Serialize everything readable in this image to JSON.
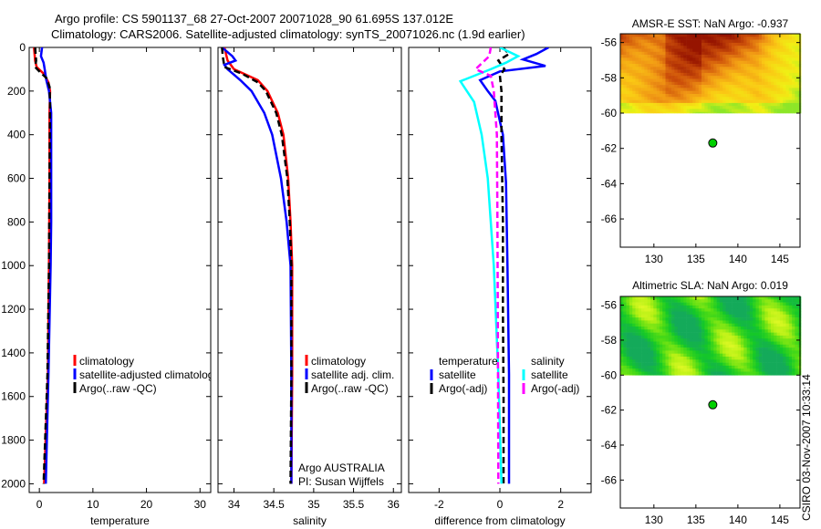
{
  "title": {
    "line1": "Argo profile: CS 5901137_68 27-Oct-2007 20071028_90 61.695S 137.012E",
    "line2": "Climatology: CARS2006. Satellite-adjusted climatology: synTS_20071026.nc (1.9d earlier)"
  },
  "footer_stamp": "CSIRO 03-Nov-2007 10:33:14",
  "colors": {
    "climatology": "#ff0000",
    "satellite": "#0000ff",
    "argo": "#000000",
    "sal_satellite": "#00ffff",
    "sal_argo": "#ff00ff"
  },
  "chart_data": [
    {
      "type": "line",
      "id": "temperature",
      "xlabel": "temperature",
      "ylabel": "",
      "xlim": [
        -1.9,
        32
      ],
      "ylim": [
        2040,
        0
      ],
      "xticks": [
        0,
        10,
        20,
        30
      ],
      "yticks": [
        0,
        200,
        400,
        600,
        800,
        1000,
        1200,
        1400,
        1600,
        1800,
        2000
      ],
      "legend": [
        "climatology",
        "satellite-adjusted climatology",
        "Argo(..raw -QC)"
      ],
      "legend_position": "lower-middle",
      "series": [
        {
          "name": "climatology",
          "color": "#ff0000",
          "depth": [
            0,
            60,
            90,
            120,
            160,
            200,
            300,
            600,
            1000,
            1500,
            2000
          ],
          "values": [
            -1.0,
            -0.8,
            -0.5,
            0.8,
            1.7,
            2.0,
            1.9,
            1.9,
            1.8,
            1.6,
            0.9
          ]
        },
        {
          "name": "satellite-adjusted climatology",
          "color": "#0000ff",
          "depth": [
            0,
            40,
            70,
            100,
            150,
            200,
            300,
            500,
            800,
            1000,
            1500,
            2000
          ],
          "values": [
            0.5,
            0.3,
            0.8,
            1.0,
            1.3,
            1.8,
            2.2,
            2.2,
            2.2,
            2.1,
            1.7,
            1.2
          ]
        },
        {
          "name": "Argo(..raw -QC)",
          "color": "#000000",
          "dashed": true,
          "depth": [
            0,
            60,
            90,
            110,
            140,
            180,
            250,
            600,
            1000,
            1500,
            2000
          ],
          "values": [
            -0.8,
            -0.6,
            -0.8,
            0.0,
            1.3,
            1.9,
            2.0,
            1.9,
            1.8,
            1.5,
            0.8
          ]
        }
      ]
    },
    {
      "type": "line",
      "id": "salinity",
      "xlabel": "salinity",
      "xlim": [
        33.8,
        36.1
      ],
      "ylim": [
        2040,
        0
      ],
      "xticks": [
        34,
        34.5,
        35,
        35.5,
        36
      ],
      "legend": [
        "climatology",
        "satellite adj. clim.",
        "Argo(..raw -QC)"
      ],
      "legend_position": "lower-middle",
      "annotation": [
        "Argo AUSTRALIA",
        "PI: Susan Wijffels"
      ],
      "series": [
        {
          "name": "climatology",
          "color": "#ff0000",
          "depth": [
            0,
            60,
            100,
            150,
            200,
            300,
            400,
            600,
            800,
            1000,
            1500,
            2000
          ],
          "values": [
            33.88,
            33.92,
            34.0,
            34.3,
            34.42,
            34.55,
            34.62,
            34.68,
            34.71,
            34.73,
            34.73,
            34.72
          ]
        },
        {
          "name": "satellite adj. clim.",
          "color": "#0000ff",
          "depth": [
            0,
            40,
            60,
            80,
            100,
            150,
            200,
            300,
            400,
            600,
            800,
            1000,
            1500,
            2000
          ],
          "values": [
            33.85,
            33.98,
            34.02,
            33.88,
            33.92,
            34.08,
            34.22,
            34.38,
            34.48,
            34.59,
            34.66,
            34.71,
            34.72,
            34.72
          ]
        },
        {
          "name": "Argo(..raw -QC)",
          "color": "#000000",
          "dashed": true,
          "depth": [
            0,
            40,
            90,
            120,
            160,
            200,
            300,
            400,
            600,
            800,
            1000,
            1500,
            2000
          ],
          "values": [
            33.85,
            33.86,
            33.88,
            34.1,
            34.3,
            34.4,
            34.53,
            34.6,
            34.67,
            34.7,
            34.72,
            34.72,
            34.71
          ]
        }
      ]
    },
    {
      "type": "line",
      "id": "difference",
      "xlabel": "difference from climatology",
      "xlim": [
        -3,
        3
      ],
      "ylim": [
        2040,
        0
      ],
      "xticks": [
        -2,
        0,
        2
      ],
      "legend_groups": [
        {
          "title": "temperature",
          "entries": [
            "satellite",
            "Argo(-adj)"
          ]
        },
        {
          "title": "salinity",
          "entries": [
            "satellite",
            "Argo(-adj)"
          ]
        }
      ],
      "legend_position": "lower-middle",
      "series": [
        {
          "name": "temperature satellite",
          "color": "#0000ff",
          "depth": [
            0,
            30,
            55,
            85,
            110,
            150,
            200,
            245,
            400,
            620,
            1000,
            1500,
            2000
          ],
          "values": [
            1.6,
            1.2,
            0.76,
            1.5,
            0.0,
            -0.65,
            -0.4,
            -0.15,
            0.1,
            0.2,
            0.25,
            0.3,
            0.3
          ]
        },
        {
          "name": "temperature Argo(-adj)",
          "color": "#000000",
          "dashed": true,
          "depth": [
            0,
            30,
            60,
            100,
            130,
            200,
            400,
            800,
            1200,
            1600,
            2000
          ],
          "values": [
            0.1,
            0.3,
            -0.05,
            0.15,
            0.0,
            0.05,
            0.05,
            0.1,
            0.1,
            0.12,
            0.12
          ]
        },
        {
          "name": "salinity satellite",
          "color": "#00ffff",
          "depth": [
            0,
            40,
            70,
            100,
            155,
            250,
            400,
            600,
            1000,
            1500,
            2000
          ],
          "values": [
            0.0,
            0.6,
            0.2,
            -0.3,
            -1.3,
            -0.85,
            -0.6,
            -0.4,
            -0.2,
            -0.05,
            0.05
          ]
        },
        {
          "name": "salinity Argo(-adj)",
          "color": "#ff00ff",
          "dashed": true,
          "depth": [
            0,
            40,
            60,
            100,
            130,
            200,
            400,
            800,
            1200,
            1600,
            2000
          ],
          "values": [
            -0.3,
            -0.35,
            -0.5,
            -0.8,
            -0.3,
            -0.2,
            -0.1,
            -0.08,
            -0.07,
            -0.06,
            -0.05
          ]
        }
      ]
    },
    {
      "type": "heatmap",
      "id": "sst-map",
      "title": "AMSR-E SST: NaN Argo: -0.937",
      "xlim": [
        126,
        147.4
      ],
      "ylim": [
        -67.6,
        -55.5
      ],
      "xticks": [
        130,
        135,
        140,
        145
      ],
      "yticks": [
        -56,
        -58,
        -60,
        -62,
        -64,
        -66
      ],
      "data_extent_lat": [
        -60,
        -55.5
      ],
      "colormap": "orange-brown",
      "argo_position": {
        "lon": 137.012,
        "lat": -61.695
      }
    },
    {
      "type": "heatmap",
      "id": "sla-map",
      "title": "Altimetric SLA: NaN Argo: 0.019",
      "xlim": [
        126,
        147.4
      ],
      "ylim": [
        -67.6,
        -55.5
      ],
      "xticks": [
        130,
        135,
        140,
        145
      ],
      "yticks": [
        -56,
        -58,
        -60,
        -62,
        -64,
        -66
      ],
      "data_extent_lat": [
        -60,
        -55.5
      ],
      "colormap": "green-yellow",
      "argo_position": {
        "lon": 137.012,
        "lat": -61.695
      }
    }
  ]
}
